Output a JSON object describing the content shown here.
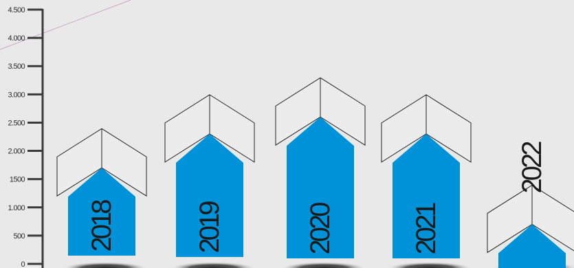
{
  "chart_data": {
    "type": "bar",
    "categories": [
      "2018",
      "2019",
      "2020",
      "2021",
      "2022"
    ],
    "values": [
      1700,
      2300,
      2600,
      2300,
      700
    ],
    "title": "",
    "xlabel": "",
    "ylabel": "",
    "ylim": [
      0,
      4500
    ],
    "yticks": [
      {
        "value": 0,
        "label": "0"
      },
      {
        "value": 500,
        "label": "500"
      },
      {
        "value": 1000,
        "label": "1.000"
      },
      {
        "value": 1500,
        "label": "1500"
      },
      {
        "value": 2000,
        "label": "2.000"
      },
      {
        "value": 2500,
        "label": "2.500"
      },
      {
        "value": 3000,
        "label": "3.000"
      },
      {
        "value": 3500,
        "label": "3.500"
      },
      {
        "value": 4000,
        "label": "4.000"
      },
      {
        "value": 4500,
        "label": "4.500"
      }
    ],
    "grid": false,
    "legend": "none",
    "bar_color": "#0092d8",
    "background": "#e9e9ea"
  }
}
